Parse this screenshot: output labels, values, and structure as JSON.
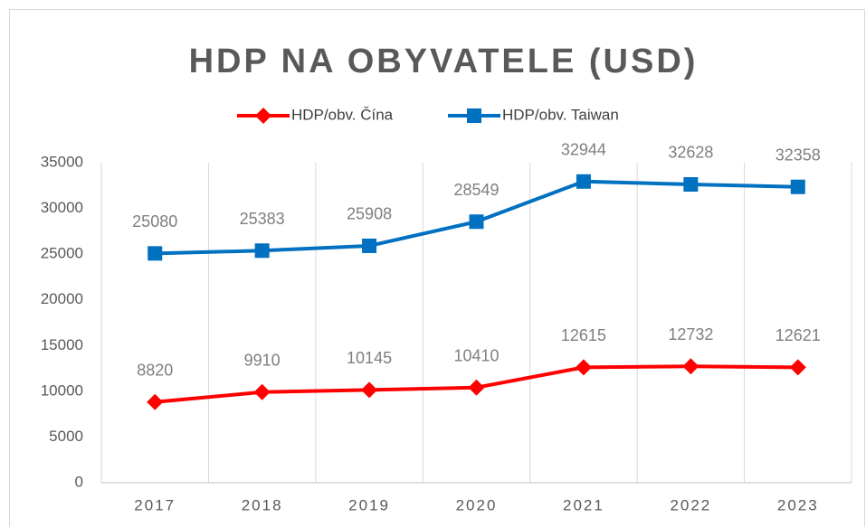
{
  "chart_data": {
    "type": "line",
    "title": "HDP NA OBYVATELE (USD)",
    "categories": [
      "2017",
      "2018",
      "2019",
      "2020",
      "2021",
      "2022",
      "2023"
    ],
    "series": [
      {
        "name": "HDP/obv. Čína",
        "color": "#ff0000",
        "marker": "diamond",
        "values": [
          8820,
          9910,
          10145,
          10410,
          12615,
          12732,
          12621
        ]
      },
      {
        "name": "HDP/obv. Taiwan",
        "color": "#0070c0",
        "marker": "square",
        "values": [
          25080,
          25383,
          25908,
          28549,
          32944,
          32628,
          32358
        ]
      }
    ],
    "ylim": [
      0,
      35000
    ],
    "yticks": [
      0,
      5000,
      10000,
      15000,
      20000,
      25000,
      30000,
      35000
    ],
    "xgrid": true,
    "legend": "top",
    "data_labels": true
  }
}
